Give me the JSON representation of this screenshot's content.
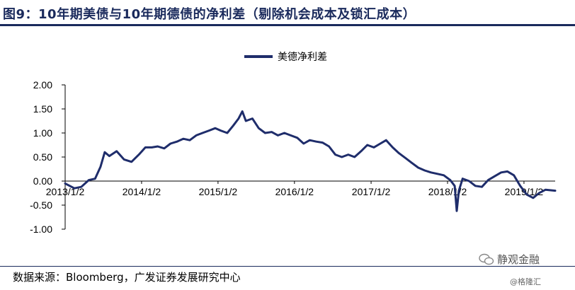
{
  "title": "图9：10年期美债与10年期德债的净利差（剔除机会成本及锁汇成本）",
  "source": "数据来源：Bloomberg，广发证券发展研究中心",
  "watermark": {
    "main": "静观金融",
    "sub": "@格隆汇",
    "icon": "wechat-icon"
  },
  "colors": {
    "line": "#1f2d6b",
    "axis": "#000000",
    "title": "#1a2a5c"
  },
  "chart_data": {
    "type": "line",
    "legend_position": "top-center",
    "grid": false,
    "ylim": [
      -1.0,
      2.0
    ],
    "y_ticks": [
      "2.00",
      "1.50",
      "1.00",
      "0.50",
      "0.00",
      "-0.50",
      "-1.00"
    ],
    "x_tick_labels": [
      "2013/1/2",
      "2014/1/2",
      "2015/1/2",
      "2016/1/2",
      "2017/1/2",
      "2018/1/2",
      "2019/1/2"
    ],
    "xlim": [
      "2013-01-02",
      "2019-05-31"
    ],
    "series": [
      {
        "name": "美德净利差",
        "points": [
          [
            "2013-01-02",
            -0.05
          ],
          [
            "2013-02-15",
            -0.15
          ],
          [
            "2013-03-20",
            -0.12
          ],
          [
            "2013-04-25",
            0.02
          ],
          [
            "2013-05-25",
            0.05
          ],
          [
            "2013-06-20",
            0.3
          ],
          [
            "2013-07-10",
            0.6
          ],
          [
            "2013-08-01",
            0.52
          ],
          [
            "2013-09-05",
            0.62
          ],
          [
            "2013-10-10",
            0.45
          ],
          [
            "2013-11-15",
            0.4
          ],
          [
            "2013-12-20",
            0.55
          ],
          [
            "2014-01-20",
            0.7
          ],
          [
            "2014-02-20",
            0.7
          ],
          [
            "2014-03-20",
            0.72
          ],
          [
            "2014-04-20",
            0.68
          ],
          [
            "2014-05-20",
            0.78
          ],
          [
            "2014-06-20",
            0.82
          ],
          [
            "2014-07-20",
            0.88
          ],
          [
            "2014-08-20",
            0.85
          ],
          [
            "2014-09-20",
            0.95
          ],
          [
            "2014-10-20",
            1.0
          ],
          [
            "2014-11-20",
            1.05
          ],
          [
            "2014-12-20",
            1.1
          ],
          [
            "2015-01-15",
            1.05
          ],
          [
            "2015-02-15",
            1.0
          ],
          [
            "2015-03-15",
            1.15
          ],
          [
            "2015-04-10",
            1.3
          ],
          [
            "2015-04-28",
            1.45
          ],
          [
            "2015-05-15",
            1.25
          ],
          [
            "2015-06-15",
            1.3
          ],
          [
            "2015-07-15",
            1.1
          ],
          [
            "2015-08-15",
            1.0
          ],
          [
            "2015-09-15",
            1.02
          ],
          [
            "2015-10-15",
            0.95
          ],
          [
            "2015-11-15",
            1.0
          ],
          [
            "2015-12-15",
            0.95
          ],
          [
            "2016-01-15",
            0.9
          ],
          [
            "2016-02-15",
            0.78
          ],
          [
            "2016-03-15",
            0.85
          ],
          [
            "2016-04-15",
            0.82
          ],
          [
            "2016-05-15",
            0.8
          ],
          [
            "2016-06-15",
            0.72
          ],
          [
            "2016-07-15",
            0.55
          ],
          [
            "2016-08-15",
            0.5
          ],
          [
            "2016-09-15",
            0.55
          ],
          [
            "2016-10-15",
            0.5
          ],
          [
            "2016-11-15",
            0.62
          ],
          [
            "2016-12-15",
            0.75
          ],
          [
            "2017-01-15",
            0.7
          ],
          [
            "2017-02-15",
            0.78
          ],
          [
            "2017-03-15",
            0.85
          ],
          [
            "2017-04-15",
            0.7
          ],
          [
            "2017-05-15",
            0.58
          ],
          [
            "2017-06-15",
            0.48
          ],
          [
            "2017-07-15",
            0.38
          ],
          [
            "2017-08-15",
            0.28
          ],
          [
            "2017-09-15",
            0.22
          ],
          [
            "2017-10-15",
            0.18
          ],
          [
            "2017-11-15",
            0.15
          ],
          [
            "2017-12-15",
            0.12
          ],
          [
            "2018-01-15",
            0.02
          ],
          [
            "2018-02-05",
            -0.1
          ],
          [
            "2018-02-15",
            -0.62
          ],
          [
            "2018-02-25",
            -0.2
          ],
          [
            "2018-03-15",
            0.05
          ],
          [
            "2018-04-15",
            0.0
          ],
          [
            "2018-05-15",
            -0.1
          ],
          [
            "2018-06-15",
            -0.12
          ],
          [
            "2018-07-15",
            0.02
          ],
          [
            "2018-08-15",
            0.1
          ],
          [
            "2018-09-15",
            0.18
          ],
          [
            "2018-10-15",
            0.2
          ],
          [
            "2018-11-15",
            0.12
          ],
          [
            "2018-12-15",
            -0.1
          ],
          [
            "2019-01-15",
            -0.28
          ],
          [
            "2019-02-15",
            -0.35
          ],
          [
            "2019-03-15",
            -0.25
          ],
          [
            "2019-04-15",
            -0.18
          ],
          [
            "2019-05-31",
            -0.2
          ]
        ]
      }
    ]
  }
}
